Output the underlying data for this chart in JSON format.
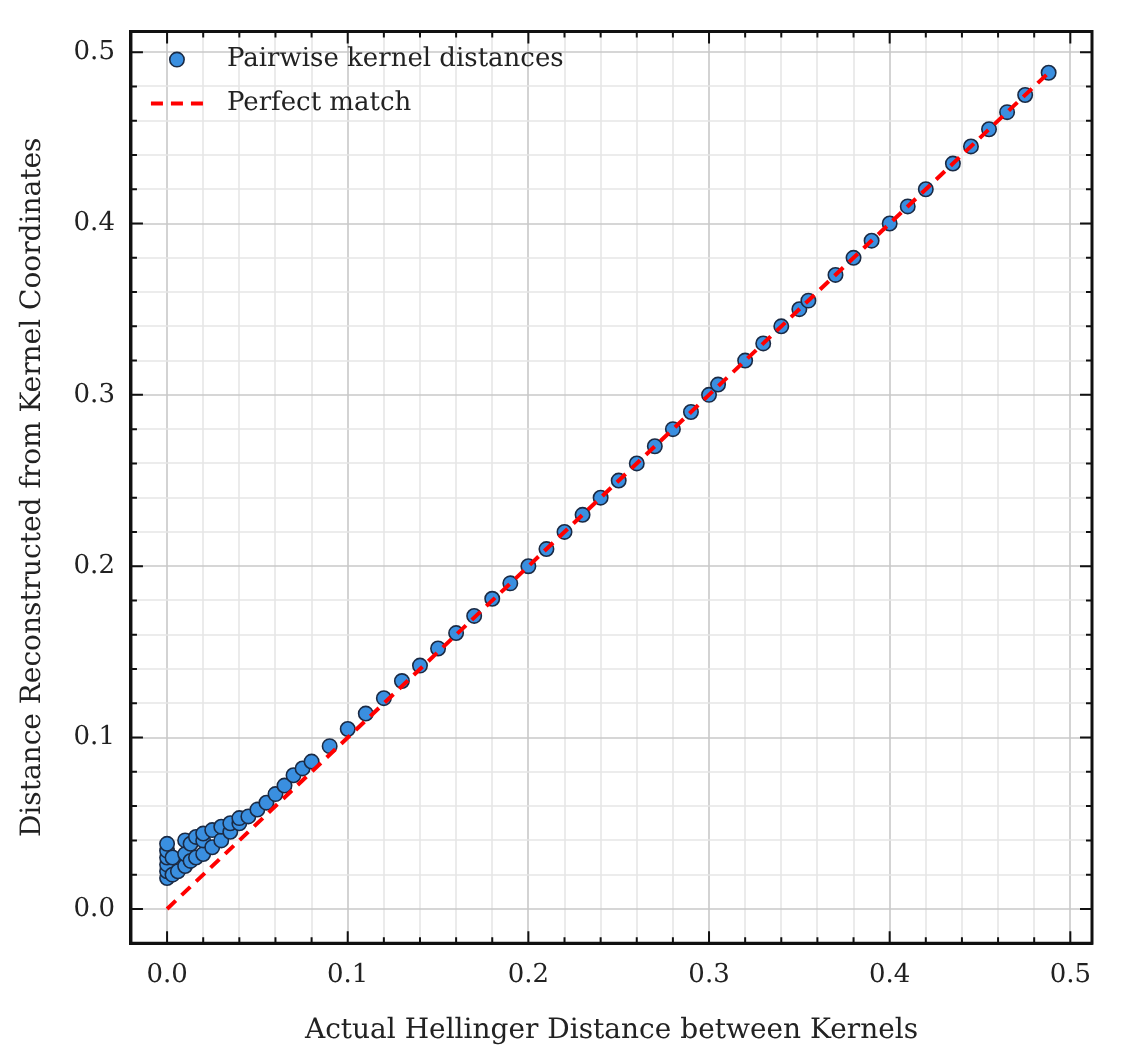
{
  "chart_data": {
    "type": "scatter",
    "xlabel": "Actual Hellinger Distance between Kernels",
    "ylabel": "Distance Reconstructed from Kernel Coordinates",
    "xlim": [
      -0.02,
      0.512
    ],
    "ylim": [
      -0.02,
      0.512
    ],
    "xticks": [
      {
        "value": 0,
        "label": "0.0"
      },
      {
        "value": 0.02,
        "label": null
      },
      {
        "value": 0.04,
        "label": null
      },
      {
        "value": 0.06,
        "label": null
      },
      {
        "value": 0.08,
        "label": null
      },
      0.1,
      {
        "value": 0.12,
        "label": null
      },
      {
        "value": 0.14,
        "label": null
      },
      {
        "value": 0.16,
        "label": null
      },
      {
        "value": 0.18,
        "label": null
      },
      0.2,
      {
        "value": 0.22,
        "label": null
      },
      {
        "value": 0.24,
        "label": null
      },
      {
        "value": 0.26,
        "label": null
      },
      {
        "value": 0.28,
        "label": null
      },
      0.3,
      {
        "value": 0.32,
        "label": null
      },
      {
        "value": 0.34,
        "label": null
      },
      {
        "value": 0.36,
        "label": null
      },
      {
        "value": 0.38,
        "label": null
      },
      0.4,
      {
        "value": 0.42,
        "label": null
      },
      {
        "value": 0.44,
        "label": null
      },
      {
        "value": 0.46,
        "label": null
      },
      {
        "value": 0.48,
        "label": null
      },
      0.5
    ],
    "yticks": [
      {
        "value": 0,
        "label": "0.0"
      },
      {
        "value": 0.02,
        "label": null
      },
      {
        "value": 0.04,
        "label": null
      },
      {
        "value": 0.06,
        "label": null
      },
      {
        "value": 0.08,
        "label": null
      },
      0.1,
      {
        "value": 0.12,
        "label": null
      },
      {
        "value": 0.14,
        "label": null
      },
      {
        "value": 0.16,
        "label": null
      },
      {
        "value": 0.18,
        "label": null
      },
      0.2,
      {
        "value": 0.22,
        "label": null
      },
      {
        "value": 0.24,
        "label": null
      },
      {
        "value": 0.26,
        "label": null
      },
      {
        "value": 0.28,
        "label": null
      },
      0.3,
      {
        "value": 0.32,
        "label": null
      },
      {
        "value": 0.34,
        "label": null
      },
      {
        "value": 0.36,
        "label": null
      },
      {
        "value": 0.38,
        "label": null
      },
      0.4,
      {
        "value": 0.42,
        "label": null
      },
      {
        "value": 0.44,
        "label": null
      },
      {
        "value": 0.46,
        "label": null
      },
      {
        "value": 0.48,
        "label": null
      },
      0.5
    ],
    "grid": true,
    "legend": "top left",
    "marker": "circle",
    "series": [
      {
        "name": "Pairwise kernel distances",
        "color": "#3a8fe0",
        "x": [
          0,
          0,
          0,
          0,
          0,
          0,
          0.003,
          0.003,
          0.006,
          0.01,
          0.01,
          0.01,
          0.013,
          0.013,
          0.016,
          0.016,
          0.02,
          0.02,
          0.02,
          0.025,
          0.025,
          0.03,
          0.03,
          0.035,
          0.035,
          0.04,
          0.04,
          0.045,
          0.05,
          0.055,
          0.06,
          0.065,
          0.07,
          0.075,
          0.08,
          0.09,
          0.1,
          0.11,
          0.12,
          0.13,
          0.14,
          0.15,
          0.16,
          0.17,
          0.18,
          0.19,
          0.2,
          0.21,
          0.22,
          0.23,
          0.24,
          0.25,
          0.26,
          0.27,
          0.28,
          0.29,
          0.3,
          0.305,
          0.32,
          0.33,
          0.34,
          0.35,
          0.355,
          0.37,
          0.38,
          0.39,
          0.4,
          0.41,
          0.42,
          0.435,
          0.445,
          0.455,
          0.465,
          0.475,
          0.488
        ],
        "values": [
          0.018,
          0.022,
          0.026,
          0.03,
          0.034,
          0.038,
          0.02,
          0.03,
          0.022,
          0.025,
          0.032,
          0.04,
          0.028,
          0.038,
          0.03,
          0.042,
          0.032,
          0.04,
          0.044,
          0.036,
          0.046,
          0.04,
          0.048,
          0.045,
          0.05,
          0.05,
          0.053,
          0.054,
          0.058,
          0.062,
          0.067,
          0.072,
          0.078,
          0.082,
          0.086,
          0.095,
          0.105,
          0.114,
          0.123,
          0.133,
          0.142,
          0.152,
          0.161,
          0.171,
          0.181,
          0.19,
          0.2,
          0.21,
          0.22,
          0.23,
          0.24,
          0.25,
          0.26,
          0.27,
          0.28,
          0.29,
          0.3,
          0.306,
          0.32,
          0.33,
          0.34,
          0.35,
          0.355,
          0.37,
          0.38,
          0.39,
          0.4,
          0.41,
          0.42,
          0.435,
          0.445,
          0.455,
          0.465,
          0.475,
          0.488
        ]
      },
      {
        "name": "Perfect match",
        "type": "line",
        "color": "#ff0000",
        "line_style": "dashed",
        "marker": "none",
        "x": [
          0,
          0.488
        ],
        "values": [
          0,
          0.488
        ]
      }
    ]
  }
}
